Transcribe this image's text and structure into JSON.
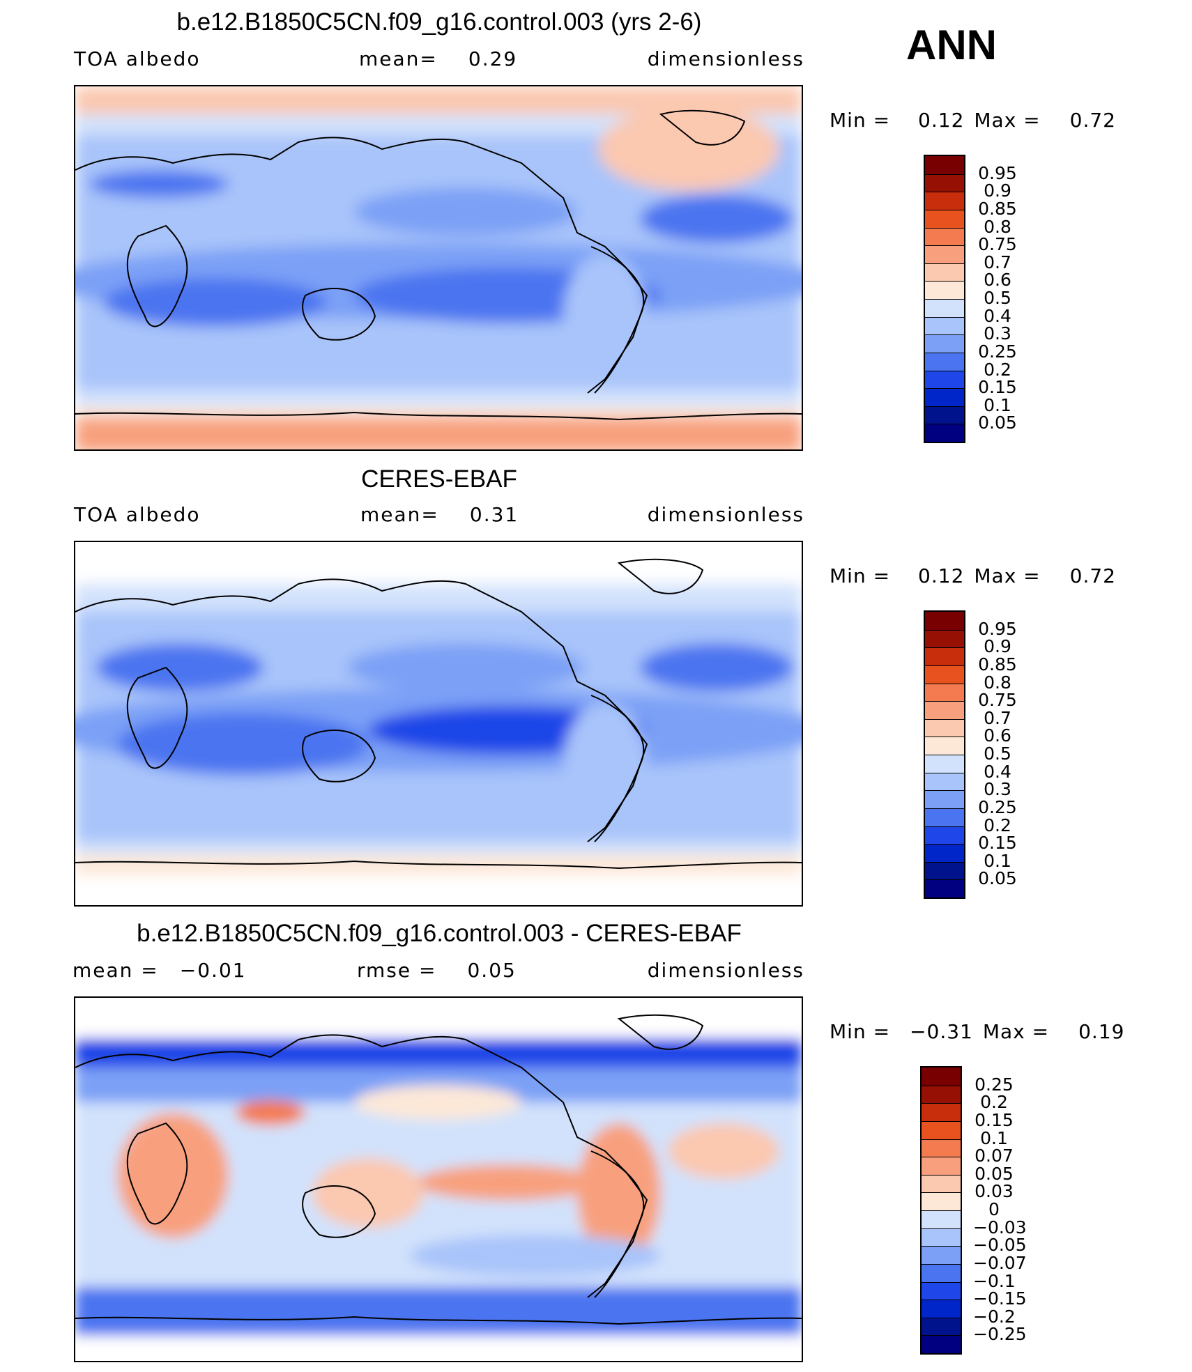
{
  "season": "ANN",
  "colors": {
    "abs_levels": [
      "#000080",
      "#00138c",
      "#0025c8",
      "#1e46e8",
      "#4b74f0",
      "#7ba0f6",
      "#a9c4fa",
      "#d2e2fc",
      "#fde8d8",
      "#fbc8b0",
      "#f8a07e",
      "#f47b50",
      "#e8521e",
      "#c82d0c",
      "#961004",
      "#780000"
    ],
    "diff_levels": [
      "#000080",
      "#00138c",
      "#0025c8",
      "#1e46e8",
      "#4b74f0",
      "#7ba0f6",
      "#a9c4fa",
      "#d2e2fc",
      "#fde8d8",
      "#fbc8b0",
      "#f8a07e",
      "#f47b50",
      "#e8521e",
      "#c82d0c",
      "#961004",
      "#780000"
    ]
  },
  "chart_data": [
    {
      "type": "heatmap",
      "title": "b.e12.B1850C5CN.f09_g16.control.003 (yrs 2-6)",
      "left_label": "TOA albedo",
      "mid_label": "mean=",
      "mid_value": "0.29",
      "right_label": "dimensionless",
      "min_label": "Min =",
      "min_value": "0.12",
      "max_label": "Max =",
      "max_value": "0.72",
      "colorbar_levels": [
        "0.95",
        "0.9",
        "0.85",
        "0.8",
        "0.75",
        "0.7",
        "0.6",
        "0.5",
        "0.4",
        "0.3",
        "0.25",
        "0.2",
        "0.15",
        "0.1",
        "0.05"
      ]
    },
    {
      "type": "heatmap",
      "title": "CERES-EBAF",
      "left_label": "TOA albedo",
      "mid_label": "mean=",
      "mid_value": "0.31",
      "right_label": "dimensionless",
      "min_label": "Min =",
      "min_value": "0.12",
      "max_label": "Max =",
      "max_value": "0.72",
      "colorbar_levels": [
        "0.95",
        "0.9",
        "0.85",
        "0.8",
        "0.75",
        "0.7",
        "0.6",
        "0.5",
        "0.4",
        "0.3",
        "0.25",
        "0.2",
        "0.15",
        "0.1",
        "0.05"
      ]
    },
    {
      "type": "heatmap",
      "title": "b.e12.B1850C5CN.f09_g16.control.003 - CERES-EBAF",
      "left_label": "mean =",
      "left_value": "−0.01",
      "mid_label": "rmse =",
      "mid_value": "0.05",
      "right_label": "dimensionless",
      "min_label": "Min =",
      "min_value": "−0.31",
      "max_label": "Max =",
      "max_value": "0.19",
      "colorbar_levels": [
        "0.25",
        "0.2",
        "0.15",
        "0.1",
        "0.07",
        "0.05",
        "0.03",
        "0",
        "−0.03",
        "−0.05",
        "−0.07",
        "−0.1",
        "−0.15",
        "−0.2",
        "−0.25"
      ]
    }
  ]
}
